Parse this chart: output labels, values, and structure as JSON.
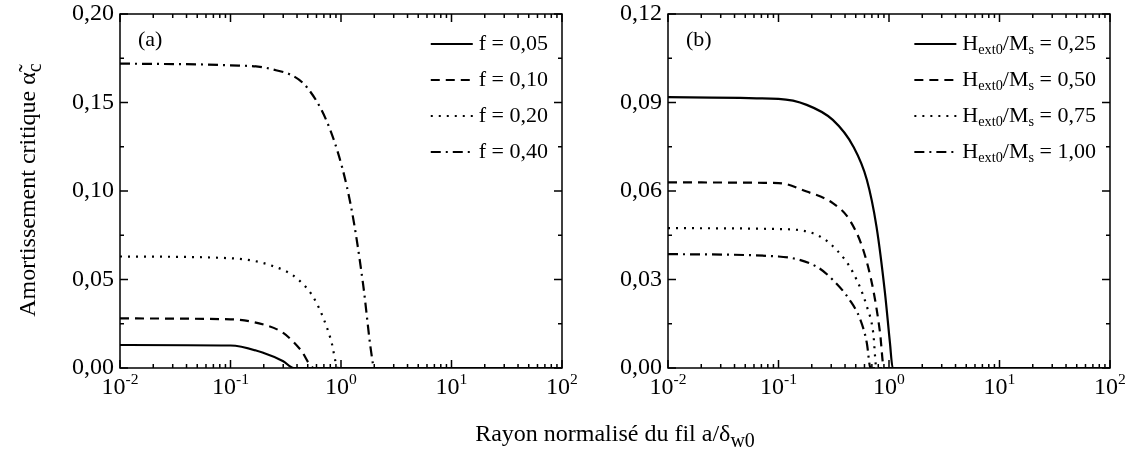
{
  "chart_data": [
    {
      "type": "line",
      "ylabel": "Amortissement critique α̃$_{c}$",
      "xlabel": "Rayon normalisé du fil a/δ$_{w0}$",
      "annotations": [
        "(a)"
      ],
      "log": "x",
      "grid": false,
      "legend": "top right",
      "marker": "none",
      "xlim": [
        0.01,
        100
      ],
      "ylim": [
        0,
        0.2
      ],
      "xticks": [
        {
          "value": 0.01,
          "label": "10$^{-2}$"
        },
        {
          "value": 0.02,
          "label": null
        },
        {
          "value": 0.03,
          "label": null
        },
        {
          "value": 0.04,
          "label": null
        },
        {
          "value": 0.05,
          "label": null
        },
        {
          "value": 0.06,
          "label": null
        },
        {
          "value": 0.07,
          "label": null
        },
        {
          "value": 0.08,
          "label": null
        },
        {
          "value": 0.09,
          "label": null
        },
        {
          "value": 0.1,
          "label": "10$^{-1}$"
        },
        {
          "value": 0.2,
          "label": null
        },
        {
          "value": 0.3,
          "label": null
        },
        {
          "value": 0.4,
          "label": null
        },
        {
          "value": 0.5,
          "label": null
        },
        {
          "value": 0.6,
          "label": null
        },
        {
          "value": 0.7,
          "label": null
        },
        {
          "value": 0.8,
          "label": null
        },
        {
          "value": 0.9,
          "label": null
        },
        {
          "value": 1,
          "label": "10$^{0}$"
        },
        {
          "value": 2,
          "label": null
        },
        {
          "value": 3,
          "label": null
        },
        {
          "value": 4,
          "label": null
        },
        {
          "value": 5,
          "label": null
        },
        {
          "value": 6,
          "label": null
        },
        {
          "value": 7,
          "label": null
        },
        {
          "value": 8,
          "label": null
        },
        {
          "value": 9,
          "label": null
        },
        {
          "value": 10,
          "label": "10$^{1}$"
        },
        {
          "value": 20,
          "label": null
        },
        {
          "value": 30,
          "label": null
        },
        {
          "value": 40,
          "label": null
        },
        {
          "value": 50,
          "label": null
        },
        {
          "value": 60,
          "label": null
        },
        {
          "value": 70,
          "label": null
        },
        {
          "value": 80,
          "label": null
        },
        {
          "value": 90,
          "label": null
        },
        {
          "value": 100,
          "label": "10$^{2}$"
        }
      ],
      "yticks": [
        {
          "value": 0,
          "label": "0,00"
        },
        {
          "value": 0.025,
          "label": null
        },
        {
          "value": 0.05,
          "label": "0,05"
        },
        {
          "value": 0.075,
          "label": null
        },
        {
          "value": 0.1,
          "label": "0,10"
        },
        {
          "value": 0.125,
          "label": null
        },
        {
          "value": 0.15,
          "label": "0,15"
        },
        {
          "value": 0.175,
          "label": null
        },
        {
          "value": 0.2,
          "label": "0,20"
        }
      ],
      "series": [
        {
          "name": "f = 0,05",
          "color": "#000000",
          "line_style": "solid",
          "x": [
            0.01,
            0.1,
            0.2,
            0.3,
            0.374,
            100
          ],
          "values": [
            0.013,
            0.0127,
            0.0085,
            0.0038,
            0,
            0
          ]
        },
        {
          "name": "f = 0,10",
          "color": "#000000",
          "line_style": "dashed",
          "x": [
            0.01,
            0.1,
            0.2,
            0.3,
            0.43,
            0.57,
            100
          ],
          "values": [
            0.028,
            0.0275,
            0.0245,
            0.0198,
            0.0104,
            0,
            0
          ]
        },
        {
          "name": "f = 0,20",
          "color": "#000000",
          "line_style": "dotted",
          "x": [
            0.01,
            0.1,
            0.245,
            0.41,
            0.59,
            0.81,
            0.94,
            100
          ],
          "values": [
            0.063,
            0.062,
            0.0575,
            0.05,
            0.0377,
            0.016,
            0,
            0
          ]
        },
        {
          "name": "f = 0,40",
          "color": "#000000",
          "line_style": "dashdot",
          "x": [
            0.01,
            0.1,
            0.23,
            0.5,
            0.86,
            1.23,
            1.58,
            1.88,
            2.0,
            100
          ],
          "values": [
            0.172,
            0.171,
            0.169,
            0.158,
            0.129,
            0.0915,
            0.048,
            0.0085,
            0,
            0
          ]
        }
      ]
    },
    {
      "type": "line",
      "annotations": [
        "(b)"
      ],
      "log": "x",
      "grid": false,
      "legend": "top right",
      "marker": "none",
      "xlim": [
        0.01,
        100
      ],
      "ylim": [
        0,
        0.12
      ],
      "xticks": [
        {
          "value": 0.01,
          "label": "10$^{-2}$"
        },
        {
          "value": 0.02,
          "label": null
        },
        {
          "value": 0.03,
          "label": null
        },
        {
          "value": 0.04,
          "label": null
        },
        {
          "value": 0.05,
          "label": null
        },
        {
          "value": 0.06,
          "label": null
        },
        {
          "value": 0.07,
          "label": null
        },
        {
          "value": 0.08,
          "label": null
        },
        {
          "value": 0.09,
          "label": null
        },
        {
          "value": 0.1,
          "label": "10$^{-1}$"
        },
        {
          "value": 0.2,
          "label": null
        },
        {
          "value": 0.3,
          "label": null
        },
        {
          "value": 0.4,
          "label": null
        },
        {
          "value": 0.5,
          "label": null
        },
        {
          "value": 0.6,
          "label": null
        },
        {
          "value": 0.7,
          "label": null
        },
        {
          "value": 0.8,
          "label": null
        },
        {
          "value": 0.9,
          "label": null
        },
        {
          "value": 1,
          "label": "10$^{0}$"
        },
        {
          "value": 2,
          "label": null
        },
        {
          "value": 3,
          "label": null
        },
        {
          "value": 4,
          "label": null
        },
        {
          "value": 5,
          "label": null
        },
        {
          "value": 6,
          "label": null
        },
        {
          "value": 7,
          "label": null
        },
        {
          "value": 8,
          "label": null
        },
        {
          "value": 9,
          "label": null
        },
        {
          "value": 10,
          "label": "10$^{1}$"
        },
        {
          "value": 20,
          "label": null
        },
        {
          "value": 30,
          "label": null
        },
        {
          "value": 40,
          "label": null
        },
        {
          "value": 50,
          "label": null
        },
        {
          "value": 60,
          "label": null
        },
        {
          "value": 70,
          "label": null
        },
        {
          "value": 80,
          "label": null
        },
        {
          "value": 90,
          "label": null
        },
        {
          "value": 100,
          "label": "10$^{2}$"
        }
      ],
      "yticks": [
        {
          "value": 0,
          "label": "0,00"
        },
        {
          "value": 0.015,
          "label": null
        },
        {
          "value": 0.03,
          "label": "0,03"
        },
        {
          "value": 0.045,
          "label": null
        },
        {
          "value": 0.06,
          "label": "0,06"
        },
        {
          "value": 0.075,
          "label": null
        },
        {
          "value": 0.09,
          "label": "0,09"
        },
        {
          "value": 0.105,
          "label": null
        },
        {
          "value": 0.12,
          "label": "0,12"
        }
      ],
      "series": [
        {
          "name": "H$_{ext0}$/M$_{s}$ = 0,25",
          "color": "#000000",
          "line_style": "solid",
          "x": [
            0.01,
            0.1,
            0.18,
            0.31,
            0.475,
            0.63,
            0.77,
            0.92,
            1.02,
            1.08,
            100
          ],
          "values": [
            0.0918,
            0.0912,
            0.0892,
            0.0841,
            0.0751,
            0.0638,
            0.048,
            0.0254,
            0.0085,
            0,
            0
          ]
        },
        {
          "name": "H$_{ext0}$/M$_{s}$ = 0,50",
          "color": "#000000",
          "line_style": "dashed",
          "x": [
            0.01,
            0.1,
            0.18,
            0.31,
            0.44,
            0.585,
            0.72,
            0.83,
            0.9,
            100
          ],
          "values": [
            0.0629,
            0.0627,
            0.0598,
            0.0559,
            0.0502,
            0.04,
            0.0265,
            0.0119,
            0,
            0
          ]
        },
        {
          "name": "H$_{ext0}$/M$_{s}$ = 0,75",
          "color": "#000000",
          "line_style": "dotted",
          "x": [
            0.01,
            0.1,
            0.22,
            0.336,
            0.475,
            0.63,
            0.72,
            0.77,
            100
          ],
          "values": [
            0.0474,
            0.0471,
            0.0452,
            0.04,
            0.0322,
            0.0209,
            0.0119,
            0,
            0
          ]
        },
        {
          "name": "H$_{ext0}$/M$_{s}$ = 1,00",
          "color": "#000000",
          "line_style": "dashdot",
          "x": [
            0.01,
            0.1,
            0.22,
            0.31,
            0.44,
            0.55,
            0.63,
            0.68,
            100
          ],
          "values": [
            0.0386,
            0.0378,
            0.0344,
            0.0299,
            0.0231,
            0.0164,
            0.0085,
            0,
            0
          ]
        }
      ]
    }
  ]
}
